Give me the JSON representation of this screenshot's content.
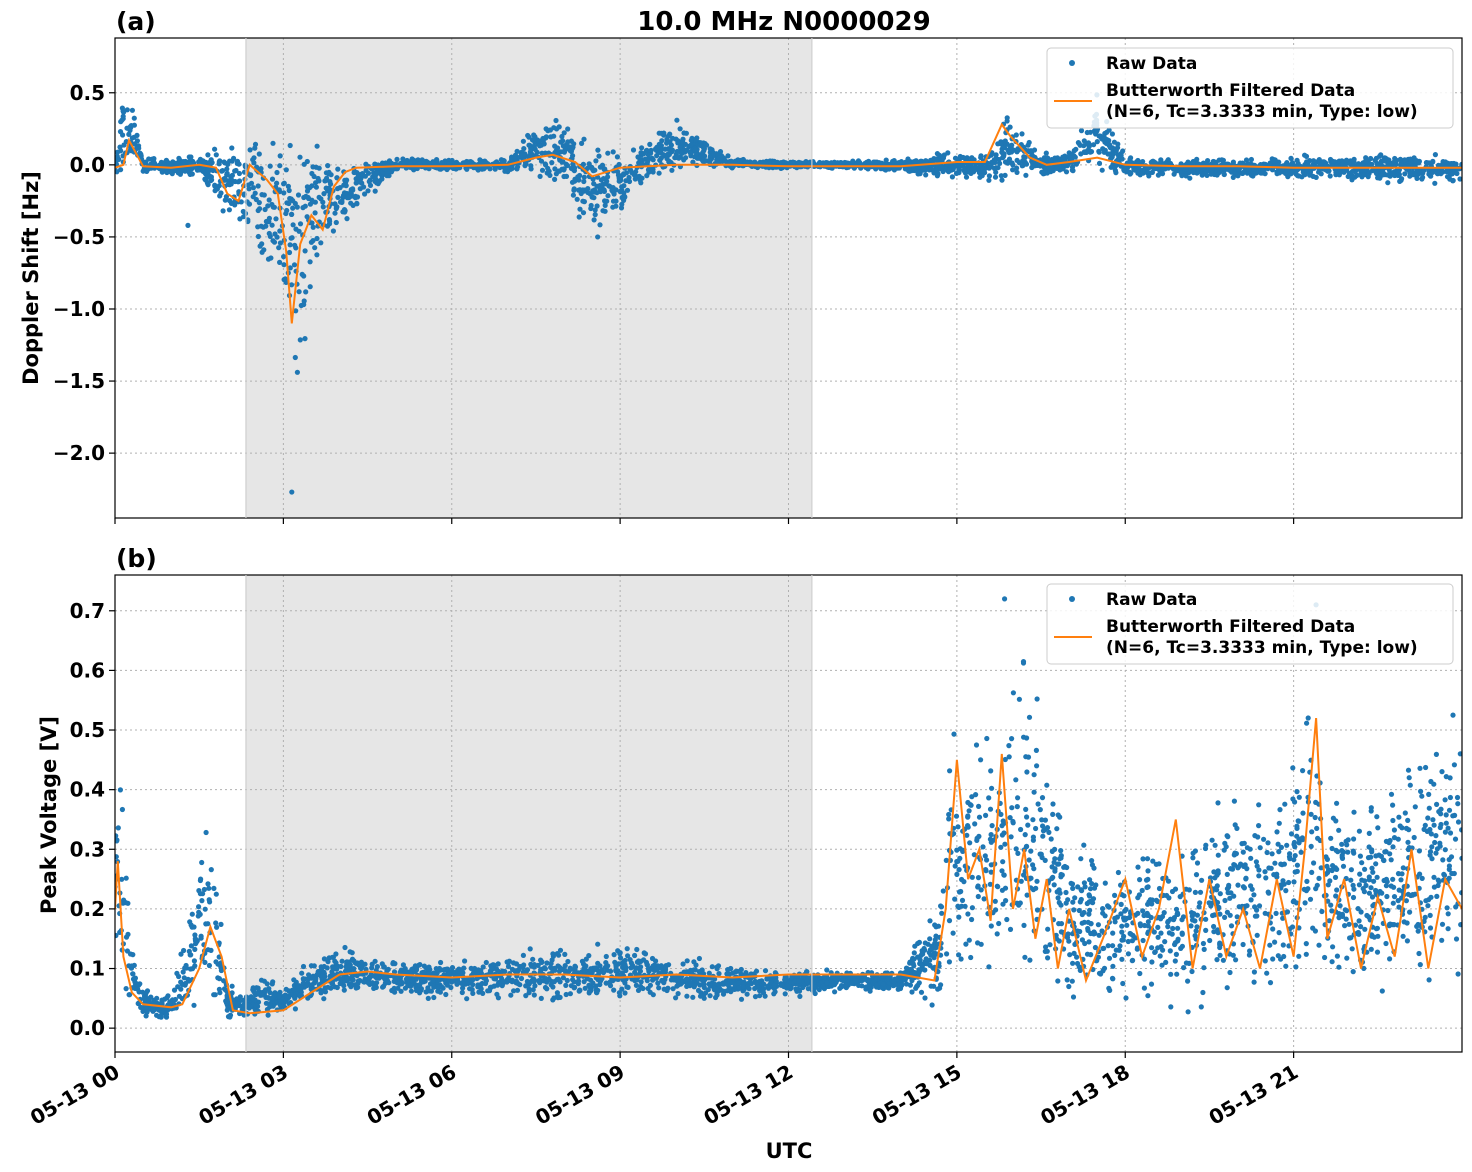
{
  "title": "10.0 MHz N0000029",
  "colors": {
    "raw": "#1f77b4",
    "filtered": "#ff7f0e",
    "night_shade": "#e6e6e6",
    "grid": "#b0b0b0"
  },
  "xlabel": "UTC",
  "x_ticks": [
    "05-13 00",
    "05-13 03",
    "05-13 06",
    "05-13 09",
    "05-13 12",
    "05-13 15",
    "05-13 18",
    "05-13 21"
  ],
  "chart_data": [
    {
      "type": "scatter",
      "panel_label": "(a)",
      "ylabel": "Doppler Shift [Hz]",
      "xlim": [
        "05-13 00:00",
        "05-14 00:00"
      ],
      "ylim": [
        -2.45,
        0.88
      ],
      "y_ticks": [
        "0.5",
        "0.0",
        "−0.5",
        "−1.0",
        "−1.5",
        "−2.0"
      ],
      "y_tick_values": [
        0.5,
        0.0,
        -0.5,
        -1.0,
        -1.5,
        -2.0
      ],
      "grid": true,
      "legend_position": "top-right",
      "legend": [
        "Raw Data",
        "Butterworth Filtered Data",
        "(N=6, Tc=3.3333 min, Type: low)"
      ],
      "shaded_span": [
        "05-13 02:20",
        "05-13 12:25"
      ],
      "series": [
        {
          "name": "Raw Data",
          "style": "points",
          "x_hours": [
            0,
            0.2,
            0.5,
            1,
            1.5,
            2,
            2.3,
            2.6,
            2.9,
            3.1,
            3.3,
            3.5,
            3.8,
            4.1,
            4.4,
            5,
            6,
            7,
            7.5,
            8,
            8.5,
            9,
            9.5,
            10,
            11,
            12,
            13,
            14,
            14.5,
            15,
            15.5,
            15.9,
            16.2,
            16.5,
            17,
            17.5,
            18,
            19,
            20,
            21,
            22,
            23,
            24
          ],
          "upper": [
            0.08,
            0.72,
            0.06,
            0.05,
            0.08,
            0.2,
            0.3,
            0.45,
            0.35,
            0.3,
            0.2,
            0.45,
            0.2,
            0.12,
            0.08,
            0.05,
            0.05,
            0.05,
            0.3,
            0.45,
            0.2,
            0.1,
            0.25,
            0.35,
            0.05,
            0.03,
            0.03,
            0.05,
            0.08,
            0.1,
            0.12,
            0.38,
            0.25,
            0.1,
            0.12,
            0.55,
            0.08,
            0.05,
            0.06,
            0.08,
            0.08,
            0.1,
            0.1
          ],
          "lower": [
            -0.1,
            -0.1,
            -0.06,
            -0.08,
            -0.1,
            -0.4,
            -0.55,
            -0.8,
            -0.9,
            -1.3,
            -2.0,
            -1.0,
            -0.6,
            -0.55,
            -0.3,
            -0.05,
            -0.05,
            -0.06,
            -0.1,
            -0.35,
            -0.5,
            -0.4,
            -0.1,
            -0.08,
            -0.03,
            -0.03,
            -0.03,
            -0.05,
            -0.1,
            -0.1,
            -0.15,
            -0.15,
            -0.1,
            -0.1,
            -0.1,
            -0.1,
            -0.1,
            -0.1,
            -0.1,
            -0.12,
            -0.12,
            -0.14,
            -0.14
          ],
          "outliers": [
            [
              3.15,
              -2.27
            ],
            [
              1.3,
              -0.42
            ],
            [
              8.6,
              -0.5
            ]
          ]
        },
        {
          "name": "Butterworth Filtered Data",
          "style": "line",
          "x_hours": [
            0,
            0.15,
            0.25,
            0.5,
            1,
            1.5,
            1.8,
            2,
            2.2,
            2.4,
            2.7,
            2.9,
            3.05,
            3.15,
            3.3,
            3.5,
            3.7,
            3.9,
            4.1,
            4.3,
            5,
            6,
            7,
            7.5,
            7.8,
            8.2,
            8.5,
            9,
            9.5,
            10,
            11,
            12,
            13,
            14,
            15,
            15.5,
            15.8,
            15.95,
            16.3,
            16.6,
            17,
            17.5,
            18,
            19,
            20,
            21,
            22,
            23,
            24
          ],
          "y": [
            -0.02,
            0.0,
            0.17,
            -0.01,
            -0.02,
            0.0,
            -0.02,
            -0.2,
            -0.25,
            0.0,
            -0.1,
            -0.2,
            -0.6,
            -1.1,
            -0.55,
            -0.35,
            -0.45,
            -0.15,
            -0.05,
            -0.02,
            -0.01,
            -0.01,
            0.0,
            0.05,
            0.07,
            0.02,
            -0.08,
            -0.02,
            -0.01,
            0.0,
            0.0,
            -0.01,
            -0.01,
            -0.01,
            0.02,
            0.02,
            0.28,
            0.2,
            0.05,
            0.0,
            0.02,
            0.05,
            0.0,
            -0.01,
            -0.01,
            -0.02,
            -0.02,
            -0.02,
            -0.02
          ]
        }
      ]
    },
    {
      "type": "scatter",
      "panel_label": "(b)",
      "ylabel": "Peak Voltage [V]",
      "xlim": [
        "05-13 00:00",
        "05-14 00:00"
      ],
      "ylim": [
        -0.04,
        0.76
      ],
      "y_ticks": [
        "0.0",
        "0.1",
        "0.2",
        "0.3",
        "0.4",
        "0.5",
        "0.6",
        "0.7"
      ],
      "y_tick_values": [
        0.0,
        0.1,
        0.2,
        0.3,
        0.4,
        0.5,
        0.6,
        0.7
      ],
      "grid": true,
      "legend_position": "top-right",
      "legend": [
        "Raw Data",
        "Butterworth Filtered Data",
        "(N=6, Tc=3.3333 min, Type: low)"
      ],
      "shaded_span": [
        "05-13 02:20",
        "05-13 12:25"
      ],
      "series": [
        {
          "name": "Raw Data",
          "style": "points",
          "x_hours": [
            0,
            0.1,
            0.3,
            0.6,
            1,
            1.2,
            1.4,
            1.6,
            1.8,
            2,
            2.3,
            2.6,
            3,
            3.5,
            4,
            4.5,
            5,
            6,
            7,
            8,
            9,
            10,
            11,
            12,
            13,
            14,
            14.7,
            15,
            15.3,
            15.7,
            16,
            16.5,
            17,
            17.5,
            18,
            18.5,
            19,
            19.5,
            20,
            20.5,
            21,
            21.3,
            21.6,
            22,
            22.5,
            23,
            23.5,
            24
          ],
          "upper": [
            0.52,
            0.45,
            0.15,
            0.06,
            0.06,
            0.16,
            0.25,
            0.4,
            0.3,
            0.08,
            0.06,
            0.1,
            0.07,
            0.12,
            0.15,
            0.13,
            0.12,
            0.12,
            0.13,
            0.15,
            0.15,
            0.13,
            0.11,
            0.1,
            0.1,
            0.1,
            0.25,
            0.62,
            0.55,
            0.5,
            0.72,
            0.6,
            0.35,
            0.3,
            0.32,
            0.38,
            0.35,
            0.4,
            0.45,
            0.42,
            0.55,
            0.68,
            0.5,
            0.4,
            0.45,
            0.5,
            0.55,
            0.56
          ],
          "lower": [
            0.02,
            0.01,
            0.01,
            0.01,
            0.01,
            0.02,
            0.02,
            0.02,
            0.02,
            0.01,
            0.01,
            0.01,
            0.02,
            0.03,
            0.05,
            0.05,
            0.05,
            0.04,
            0.04,
            0.03,
            0.04,
            0.04,
            0.04,
            0.05,
            0.06,
            0.06,
            0.02,
            0.02,
            0.02,
            0.01,
            0.01,
            0.01,
            0.01,
            0.01,
            0.01,
            0.01,
            0.01,
            0.01,
            0.01,
            0.02,
            0.02,
            0.02,
            0.02,
            0.02,
            0.02,
            0.02,
            0.02,
            0.02
          ],
          "outliers": [
            [
              15.85,
              0.72
            ],
            [
              21.4,
              0.71
            ]
          ]
        },
        {
          "name": "Butterworth Filtered Data",
          "style": "line",
          "x_hours": [
            0,
            0.05,
            0.15,
            0.3,
            0.5,
            1,
            1.2,
            1.5,
            1.7,
            1.9,
            2.1,
            2.4,
            3,
            3.5,
            4,
            4.5,
            5,
            6,
            7,
            8,
            9,
            10,
            11,
            12,
            13,
            14,
            14.6,
            14.8,
            15.0,
            15.2,
            15.4,
            15.6,
            15.8,
            16.0,
            16.2,
            16.4,
            16.6,
            16.8,
            17,
            17.3,
            17.6,
            18,
            18.3,
            18.6,
            18.9,
            19.2,
            19.5,
            19.8,
            20.1,
            20.4,
            20.7,
            21,
            21.2,
            21.4,
            21.6,
            21.9,
            22.2,
            22.5,
            22.8,
            23.1,
            23.4,
            23.7,
            24
          ],
          "y": [
            0.2,
            0.28,
            0.12,
            0.06,
            0.04,
            0.035,
            0.04,
            0.1,
            0.17,
            0.12,
            0.03,
            0.025,
            0.03,
            0.06,
            0.09,
            0.095,
            0.09,
            0.085,
            0.09,
            0.09,
            0.085,
            0.09,
            0.085,
            0.09,
            0.09,
            0.09,
            0.08,
            0.2,
            0.45,
            0.25,
            0.3,
            0.18,
            0.46,
            0.2,
            0.3,
            0.15,
            0.25,
            0.1,
            0.2,
            0.08,
            0.15,
            0.25,
            0.12,
            0.2,
            0.35,
            0.1,
            0.25,
            0.12,
            0.2,
            0.1,
            0.25,
            0.12,
            0.3,
            0.52,
            0.15,
            0.25,
            0.1,
            0.22,
            0.12,
            0.3,
            0.1,
            0.25,
            0.2
          ]
        }
      ]
    }
  ]
}
